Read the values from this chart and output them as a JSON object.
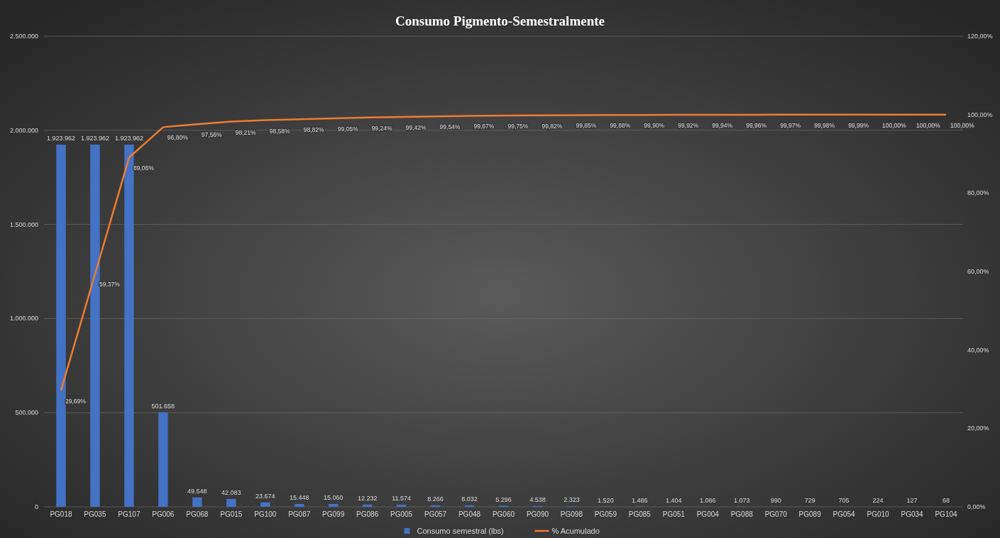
{
  "chart_data": {
    "type": "bar",
    "title": "Consumo Pigmento-Semestralmente",
    "categories": [
      "PG018",
      "PG035",
      "PG107",
      "PG006",
      "PG068",
      "PG015",
      "PG100",
      "PG087",
      "PG099",
      "PG086",
      "PG005",
      "PG057",
      "PG048",
      "PG060",
      "PG090",
      "PG098",
      "PG059",
      "PG085",
      "PG051",
      "PG004",
      "PG088",
      "PG070",
      "PG089",
      "PG054",
      "PG010",
      "PG034",
      "PG104"
    ],
    "series": [
      {
        "name": "Consumo semestral (lbs)",
        "color": "#4472c4",
        "values": [
          1923962,
          1923962,
          1923962,
          501658,
          49548,
          42083,
          23674,
          15448,
          15060,
          12232,
          11574,
          8266,
          8032,
          5296,
          4538,
          2323,
          1520,
          1486,
          1404,
          1086,
          1073,
          990,
          729,
          705,
          224,
          127,
          68
        ],
        "value_labels": [
          "1.923.962",
          "1.923.962",
          "1.923.962",
          "501.658",
          "49.548",
          "42.083",
          "23.674",
          "15.448",
          "15.060",
          "12.232",
          "11.574",
          "8.266",
          "8.032",
          "5.296",
          "4.538",
          "2.323",
          "1.520",
          "1.486",
          "1.404",
          "1.086",
          "1.073",
          "990",
          "729",
          "705",
          "224",
          "127",
          "68"
        ]
      },
      {
        "name": "% Acumulado",
        "type": "line",
        "axis": "y2",
        "color": "#ed7d31",
        "values": [
          29.69,
          59.37,
          89.06,
          96.8,
          97.56,
          98.21,
          98.58,
          98.82,
          99.05,
          99.24,
          99.42,
          99.54,
          99.67,
          99.75,
          99.82,
          99.85,
          99.88,
          99.9,
          99.92,
          99.94,
          99.96,
          99.97,
          99.98,
          99.99,
          100.0,
          100.0,
          100.0
        ],
        "value_labels": [
          "29,69%",
          "59,37%",
          "89,06%",
          "96,80%",
          "97,56%",
          "98,21%",
          "98,58%",
          "98,82%",
          "99,05%",
          "99,24%",
          "99,42%",
          "99,54%",
          "99,67%",
          "99,75%",
          "99,82%",
          "99,85%",
          "99,88%",
          "99,90%",
          "99,92%",
          "99,94%",
          "99,96%",
          "99,97%",
          "99,98%",
          "99,99%",
          "100,00%",
          "100,00%",
          "100,00%"
        ]
      }
    ],
    "ylim": [
      0,
      2500000
    ],
    "yticks": [
      {
        "value": 0,
        "label": "0"
      },
      {
        "value": 500000,
        "label": "500.000"
      },
      {
        "value": 1000000,
        "label": "1.000.000"
      },
      {
        "value": 1500000,
        "label": "1.500.000"
      },
      {
        "value": 2000000,
        "label": "2.000.000"
      },
      {
        "value": 2500000,
        "label": "2.500.000"
      }
    ],
    "y2lim": [
      0,
      120
    ],
    "y2ticks": [
      {
        "value": 0,
        "label": "0,00%"
      },
      {
        "value": 20,
        "label": "20,00%"
      },
      {
        "value": 40,
        "label": "40,00%"
      },
      {
        "value": 60,
        "label": "60,00%"
      },
      {
        "value": 80,
        "label": "80,00%"
      },
      {
        "value": 100,
        "label": "100,00%"
      },
      {
        "value": 120,
        "label": "120,00%"
      }
    ],
    "grid": "y",
    "legend": "bottom"
  }
}
